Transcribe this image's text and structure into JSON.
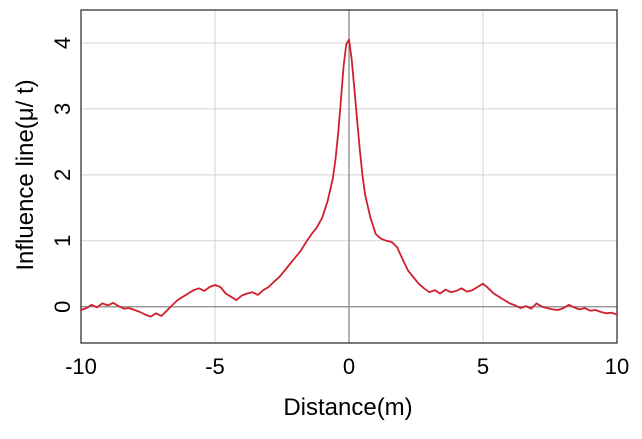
{
  "chart_data": {
    "type": "line",
    "title": "",
    "xlabel": "Distance(m)",
    "ylabel": "Influence line(μ/ t)",
    "xlim": [
      -10,
      10
    ],
    "ylim": [
      -0.55,
      4.5
    ],
    "xticks": [
      -10,
      -5,
      0,
      5,
      10
    ],
    "yticks": [
      0,
      1,
      2,
      3,
      4
    ],
    "grid": true,
    "legend": "none",
    "series": [
      {
        "color": "#d0202e",
        "x": [
          -10.0,
          -9.8,
          -9.6,
          -9.4,
          -9.2,
          -9.0,
          -8.8,
          -8.6,
          -8.4,
          -8.2,
          -8.0,
          -7.8,
          -7.6,
          -7.4,
          -7.2,
          -7.0,
          -6.8,
          -6.6,
          -6.4,
          -6.2,
          -6.0,
          -5.8,
          -5.6,
          -5.4,
          -5.2,
          -5.0,
          -4.8,
          -4.6,
          -4.4,
          -4.2,
          -4.0,
          -3.8,
          -3.6,
          -3.4,
          -3.2,
          -3.0,
          -2.8,
          -2.6,
          -2.4,
          -2.2,
          -2.0,
          -1.8,
          -1.6,
          -1.4,
          -1.2,
          -1.0,
          -0.8,
          -0.6,
          -0.5,
          -0.4,
          -0.3,
          -0.2,
          -0.1,
          0.0,
          0.1,
          0.2,
          0.3,
          0.4,
          0.5,
          0.6,
          0.8,
          1.0,
          1.2,
          1.4,
          1.6,
          1.8,
          2.0,
          2.2,
          2.4,
          2.6,
          2.8,
          3.0,
          3.2,
          3.4,
          3.6,
          3.8,
          4.0,
          4.2,
          4.4,
          4.6,
          4.8,
          5.0,
          5.2,
          5.4,
          5.6,
          5.8,
          6.0,
          6.2,
          6.4,
          6.6,
          6.8,
          7.0,
          7.2,
          7.4,
          7.6,
          7.8,
          8.0,
          8.2,
          8.4,
          8.6,
          8.8,
          9.0,
          9.2,
          9.4,
          9.6,
          9.8,
          10.0
        ],
        "y": [
          -0.05,
          -0.02,
          0.03,
          -0.01,
          0.05,
          0.02,
          0.06,
          0.01,
          -0.03,
          -0.02,
          -0.05,
          -0.08,
          -0.12,
          -0.15,
          -0.1,
          -0.14,
          -0.06,
          0.02,
          0.1,
          0.15,
          0.2,
          0.25,
          0.28,
          0.24,
          0.3,
          0.33,
          0.3,
          0.2,
          0.15,
          0.1,
          0.17,
          0.2,
          0.22,
          0.18,
          0.25,
          0.3,
          0.38,
          0.45,
          0.55,
          0.65,
          0.75,
          0.85,
          0.98,
          1.1,
          1.2,
          1.35,
          1.6,
          1.95,
          2.25,
          2.65,
          3.15,
          3.65,
          3.98,
          4.05,
          3.75,
          3.3,
          2.85,
          2.4,
          2.0,
          1.7,
          1.35,
          1.1,
          1.03,
          1.0,
          0.98,
          0.9,
          0.72,
          0.55,
          0.45,
          0.35,
          0.28,
          0.22,
          0.25,
          0.2,
          0.26,
          0.22,
          0.24,
          0.28,
          0.23,
          0.25,
          0.3,
          0.35,
          0.28,
          0.2,
          0.15,
          0.1,
          0.05,
          0.02,
          -0.02,
          0.01,
          -0.03,
          0.05,
          0.0,
          -0.02,
          -0.04,
          -0.05,
          -0.02,
          0.03,
          -0.01,
          -0.04,
          -0.02,
          -0.06,
          -0.05,
          -0.08,
          -0.1,
          -0.09,
          -0.12
        ]
      }
    ]
  }
}
